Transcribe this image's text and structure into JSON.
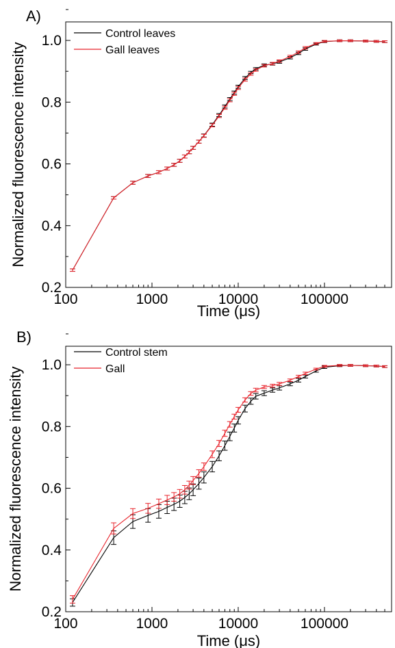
{
  "chart_data": [
    {
      "type": "line",
      "panel_label": "A)",
      "xlabel": "Time (μs)",
      "ylabel": "Normalized fluorescence intensity",
      "xscale": "log",
      "xlim": [
        100,
        600000
      ],
      "ylim": [
        0.2,
        1.06
      ],
      "xticks": [
        100,
        1000,
        10000,
        100000
      ],
      "xtick_labels": [
        "100",
        "1000",
        "10000",
        "100000"
      ],
      "yticks": [
        0.2,
        0.4,
        0.6,
        0.8,
        1.0
      ],
      "ytick_labels": [
        "0.2",
        "0.4",
        "0.6",
        "0.8",
        "1.0"
      ],
      "legend_position": "top-left",
      "x": [
        120,
        360,
        600,
        900,
        1200,
        1500,
        1800,
        2100,
        2400,
        2700,
        3000,
        3500,
        4000,
        5000,
        6000,
        7000,
        8000,
        9000,
        10000,
        12000,
        14000,
        16000,
        20000,
        25000,
        30000,
        40000,
        50000,
        60000,
        80000,
        100000,
        150000,
        200000,
        300000,
        400000,
        500000
      ],
      "series": [
        {
          "name": "Control leaves",
          "color": "#000000",
          "values": [
            0.256,
            0.49,
            0.539,
            0.561,
            0.573,
            0.585,
            0.597,
            0.61,
            0.624,
            0.638,
            0.652,
            0.672,
            0.692,
            0.727,
            0.758,
            0.786,
            0.81,
            0.831,
            0.85,
            0.878,
            0.896,
            0.908,
            0.92,
            0.924,
            0.93,
            0.944,
            0.958,
            0.972,
            0.988,
            0.996,
            0.999,
            0.999,
            0.998,
            0.997,
            0.996
          ],
          "error": [
            0.004,
            0.004,
            0.005,
            0.005,
            0.005,
            0.005,
            0.005,
            0.005,
            0.005,
            0.005,
            0.005,
            0.005,
            0.005,
            0.005,
            0.005,
            0.005,
            0.005,
            0.005,
            0.005,
            0.005,
            0.004,
            0.004,
            0.004,
            0.004,
            0.004,
            0.004,
            0.004,
            0.004,
            0.003,
            0.003,
            0.003,
            0.003,
            0.003,
            0.003,
            0.003
          ]
        },
        {
          "name": "Gall leaves",
          "color": "#e8222a",
          "values": [
            0.256,
            0.49,
            0.539,
            0.561,
            0.573,
            0.585,
            0.597,
            0.61,
            0.624,
            0.638,
            0.652,
            0.672,
            0.691,
            0.725,
            0.755,
            0.782,
            0.806,
            0.827,
            0.846,
            0.873,
            0.891,
            0.904,
            0.918,
            0.925,
            0.933,
            0.948,
            0.962,
            0.976,
            0.99,
            0.997,
            0.999,
            0.999,
            0.998,
            0.997,
            0.996
          ],
          "error": [
            0.004,
            0.004,
            0.005,
            0.005,
            0.005,
            0.005,
            0.005,
            0.005,
            0.005,
            0.005,
            0.005,
            0.005,
            0.005,
            0.005,
            0.005,
            0.005,
            0.005,
            0.005,
            0.005,
            0.005,
            0.004,
            0.004,
            0.004,
            0.004,
            0.004,
            0.004,
            0.004,
            0.004,
            0.003,
            0.003,
            0.003,
            0.003,
            0.003,
            0.003,
            0.003
          ]
        }
      ]
    },
    {
      "type": "line",
      "panel_label": "B)",
      "xlabel": "Time (μs)",
      "ylabel": "Normalized fluorescence intensity",
      "xscale": "log",
      "xlim": [
        100,
        600000
      ],
      "ylim": [
        0.2,
        1.06
      ],
      "xticks": [
        100,
        1000,
        10000,
        100000
      ],
      "xtick_labels": [
        "100",
        "1000",
        "10000",
        "100000"
      ],
      "yticks": [
        0.2,
        0.4,
        0.6,
        0.8,
        1.0
      ],
      "ytick_labels": [
        "0.2",
        "0.4",
        "0.6",
        "0.8",
        "1.0"
      ],
      "legend_position": "top-left",
      "x": [
        120,
        360,
        600,
        900,
        1200,
        1500,
        1800,
        2100,
        2400,
        2700,
        3000,
        3500,
        4000,
        5000,
        6000,
        7000,
        8000,
        9000,
        10000,
        12000,
        14000,
        16000,
        20000,
        25000,
        30000,
        40000,
        50000,
        60000,
        80000,
        100000,
        150000,
        200000,
        300000,
        400000,
        500000
      ],
      "series": [
        {
          "name": "Control stem",
          "color": "#000000",
          "values": [
            0.23,
            0.44,
            0.492,
            0.512,
            0.525,
            0.538,
            0.548,
            0.558,
            0.57,
            0.582,
            0.595,
            0.615,
            0.635,
            0.67,
            0.705,
            0.738,
            0.768,
            0.795,
            0.82,
            0.858,
            0.882,
            0.898,
            0.908,
            0.918,
            0.925,
            0.938,
            0.95,
            0.962,
            0.98,
            0.992,
            0.997,
            0.998,
            0.997,
            0.996,
            0.994
          ],
          "error": [
            0.012,
            0.022,
            0.022,
            0.022,
            0.022,
            0.02,
            0.02,
            0.02,
            0.02,
            0.019,
            0.019,
            0.018,
            0.018,
            0.017,
            0.016,
            0.015,
            0.014,
            0.013,
            0.012,
            0.011,
            0.01,
            0.009,
            0.008,
            0.007,
            0.007,
            0.006,
            0.006,
            0.005,
            0.004,
            0.004,
            0.003,
            0.003,
            0.003,
            0.003,
            0.003
          ]
        },
        {
          "name": "Gall",
          "color": "#e8222a",
          "values": [
            0.24,
            0.47,
            0.518,
            0.535,
            0.55,
            0.562,
            0.572,
            0.582,
            0.595,
            0.61,
            0.625,
            0.648,
            0.67,
            0.71,
            0.745,
            0.778,
            0.807,
            0.832,
            0.854,
            0.886,
            0.907,
            0.918,
            0.928,
            0.932,
            0.938,
            0.95,
            0.962,
            0.972,
            0.986,
            0.995,
            0.998,
            0.998,
            0.997,
            0.996,
            0.994
          ],
          "error": [
            0.012,
            0.018,
            0.016,
            0.016,
            0.015,
            0.015,
            0.014,
            0.014,
            0.014,
            0.013,
            0.013,
            0.012,
            0.012,
            0.011,
            0.01,
            0.01,
            0.009,
            0.008,
            0.008,
            0.007,
            0.006,
            0.006,
            0.005,
            0.005,
            0.005,
            0.004,
            0.004,
            0.004,
            0.003,
            0.003,
            0.003,
            0.003,
            0.003,
            0.003,
            0.003
          ]
        }
      ]
    }
  ]
}
